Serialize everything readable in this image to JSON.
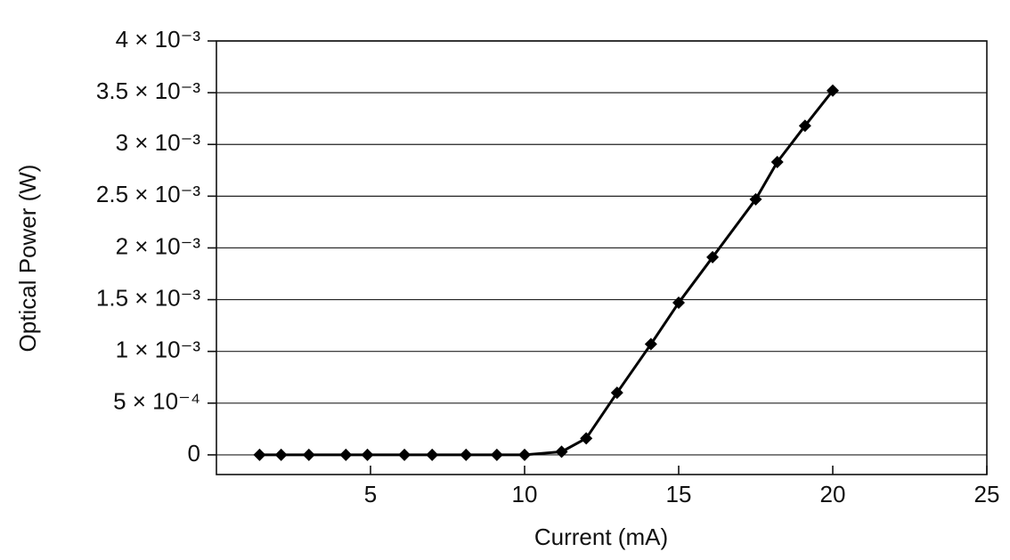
{
  "chart_data": {
    "type": "line",
    "x_label": "Current (mA)",
    "y_label": "Optical Power (W)",
    "x": [
      1.4,
      2.1,
      3.0,
      4.2,
      4.9,
      6.1,
      7.0,
      8.1,
      9.1,
      10.0,
      11.2,
      12.0,
      13.0,
      14.1,
      15.0,
      16.1,
      17.5,
      18.2,
      19.1,
      20.0
    ],
    "series": [
      {
        "color": "#000000",
        "values": [
          0,
          0,
          0,
          0,
          0,
          0,
          0,
          0,
          0,
          0,
          3e-05,
          0.00016,
          0.0006,
          0.00107,
          0.00147,
          0.00191,
          0.00247,
          0.00283,
          0.00318,
          0.00352
        ]
      }
    ],
    "xlim": [
      0,
      25
    ],
    "xticks": [
      5,
      10,
      15,
      20,
      25
    ],
    "ylim": [
      -0.00019,
      0.004
    ],
    "yticks": [
      0,
      {
        "value": 0.0005,
        "label": "5 × 10⁻⁴"
      },
      {
        "value": 0.001,
        "label": "1 × 10⁻³"
      },
      {
        "value": 0.0015,
        "label": "1.5 × 10⁻³"
      },
      {
        "value": 0.002,
        "label": "2 × 10⁻³"
      },
      {
        "value": 0.0025,
        "label": "2.5 × 10⁻³"
      },
      {
        "value": 0.003,
        "label": "3 × 10⁻³"
      },
      {
        "value": 0.0035,
        "label": "3.5 × 10⁻³"
      },
      {
        "value": 0.004,
        "label": "4 × 10⁻³"
      }
    ],
    "grid": true
  }
}
